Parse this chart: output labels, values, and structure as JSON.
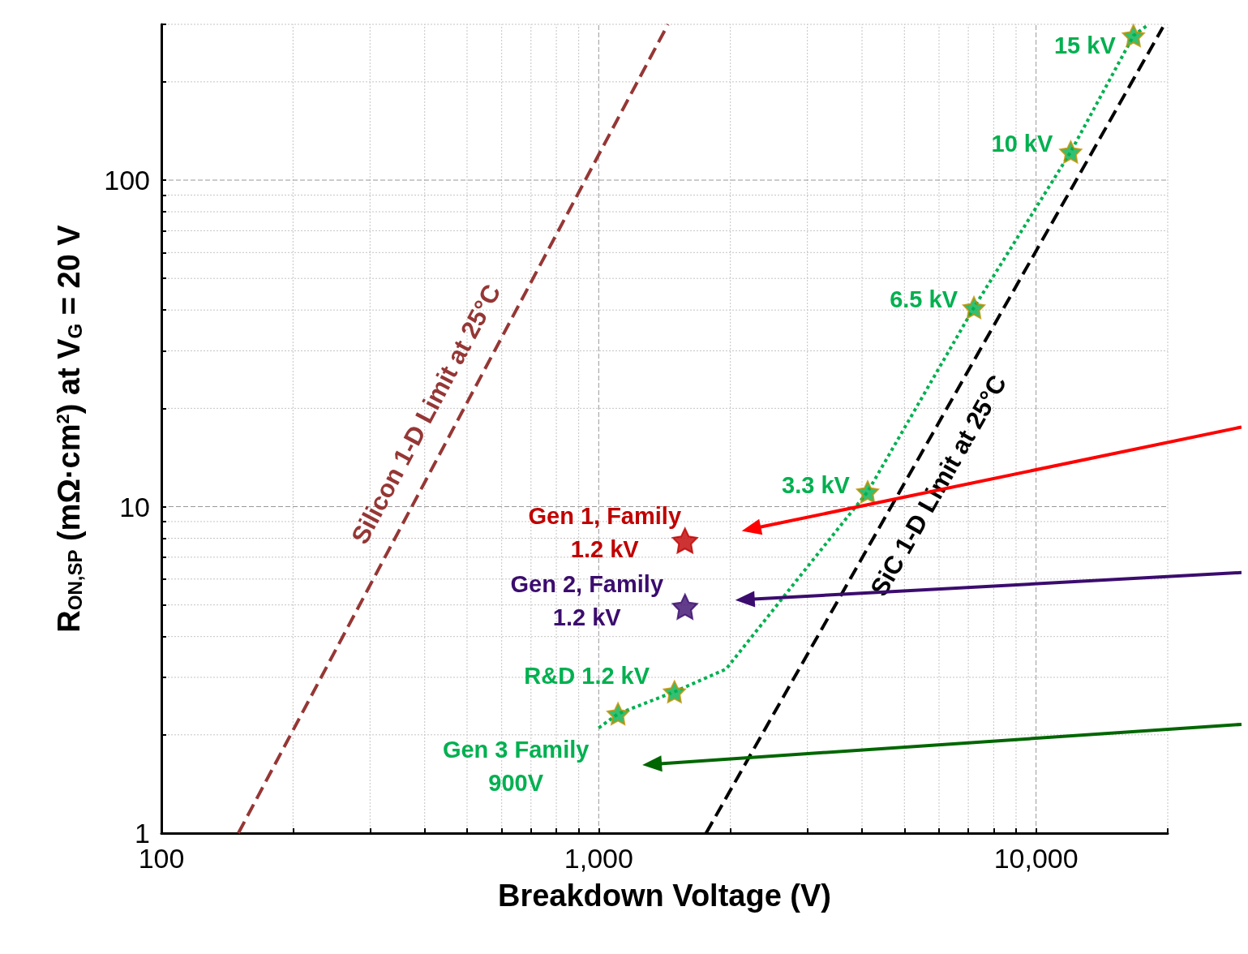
{
  "chart_data": {
    "type": "line",
    "xlabel": "Breakdown Voltage (V)",
    "ylabel": "R$_{ON,SP}$ (mΩ·cm$^{2}$) at V$_{G}$ = 20 V",
    "log": "xy",
    "xlim": [
      100,
      20000
    ],
    "ylim": [
      1,
      300
    ],
    "xticks": [
      100,
      {
        "value": 200,
        "label": null
      },
      {
        "value": 300,
        "label": null
      },
      {
        "value": 400,
        "label": null
      },
      {
        "value": 500,
        "label": null
      },
      {
        "value": 600,
        "label": null
      },
      {
        "value": 700,
        "label": null
      },
      {
        "value": 800,
        "label": null
      },
      {
        "value": 900,
        "label": null
      },
      {
        "value": 1000,
        "label": "1,000"
      },
      {
        "value": 2000,
        "label": null
      },
      {
        "value": 3000,
        "label": null
      },
      {
        "value": 4000,
        "label": null
      },
      {
        "value": 5000,
        "label": null
      },
      {
        "value": 6000,
        "label": null
      },
      {
        "value": 7000,
        "label": null
      },
      {
        "value": 8000,
        "label": null
      },
      {
        "value": 9000,
        "label": null
      },
      {
        "value": 10000,
        "label": "10,000"
      },
      {
        "value": 20000,
        "label": null
      }
    ],
    "yticks": [
      1,
      {
        "value": 2,
        "label": null
      },
      {
        "value": 3,
        "label": null
      },
      {
        "value": 4,
        "label": null
      },
      {
        "value": 5,
        "label": null
      },
      {
        "value": 6,
        "label": null
      },
      {
        "value": 7,
        "label": null
      },
      {
        "value": 8,
        "label": null
      },
      {
        "value": 9,
        "label": null
      },
      10,
      {
        "value": 20,
        "label": null
      },
      {
        "value": 30,
        "label": null
      },
      {
        "value": 40,
        "label": null
      },
      {
        "value": 50,
        "label": null
      },
      {
        "value": 60,
        "label": null
      },
      {
        "value": 70,
        "label": null
      },
      {
        "value": 80,
        "label": null
      },
      {
        "value": 90,
        "label": null
      },
      100,
      {
        "value": 200,
        "label": null
      },
      {
        "value": 300,
        "label": null
      }
    ],
    "grid": true,
    "annotations": [
      {
        "text": "Gen 3 Family\n900V",
        "x": 1107,
        "y": 2.32
      },
      {
        "text": "R&D 1.2 kV",
        "x": 1490,
        "y": 2.71
      },
      {
        "text": "3.3 kV",
        "x": 4120,
        "y": 11.1
      },
      {
        "text": "6.5 kV",
        "x": 7210,
        "y": 40.7
      },
      {
        "text": "10 kV",
        "x": 12000,
        "y": 122
      },
      {
        "text": "15 kV",
        "x": 16700,
        "y": 277
      },
      {
        "text": "Gen 1, Family\n1.2 kV",
        "x": 1575,
        "y": 7.87
      },
      {
        "text": "Gen 2, Family\n1.2 kV",
        "x": 1575,
        "y": 4.94
      }
    ],
    "series": [
      {
        "name": "Silicon 1-D Limit at 25°C",
        "color": "#953735",
        "line_style": "dashed",
        "marker": "none",
        "x": [
          150,
          1440
        ],
        "values": [
          1,
          300
        ]
      },
      {
        "name": "SiC 1-D Limit at 25°C",
        "color": "#000000",
        "line_style": "dashed",
        "marker": "none",
        "x": [
          1760,
          19500
        ],
        "values": [
          1,
          294
        ]
      },
      {
        "color": "#00b050",
        "line_style": "dotted",
        "marker": "none",
        "x": [
          1000,
          1107,
          1490,
          1955,
          2990,
          4120,
          7210,
          12000,
          16700,
          18100
        ],
        "values": [
          2.1,
          2.32,
          2.71,
          3.18,
          6.5,
          11.1,
          40.7,
          122,
          277,
          300
        ]
      },
      {
        "type": "scatter",
        "color": "#00b050",
        "marker": "star",
        "x": [
          1107,
          1490,
          4120,
          7210,
          12000,
          16700
        ],
        "values": [
          2.32,
          2.71,
          11.1,
          40.7,
          122,
          277
        ]
      },
      {
        "type": "scatter",
        "color": "#c00000",
        "marker": "star",
        "x": [
          1575
        ],
        "values": [
          7.87
        ]
      },
      {
        "type": "scatter",
        "color": "#3b0c6e",
        "marker": "star",
        "x": [
          1575
        ],
        "values": [
          4.94
        ]
      }
    ]
  }
}
